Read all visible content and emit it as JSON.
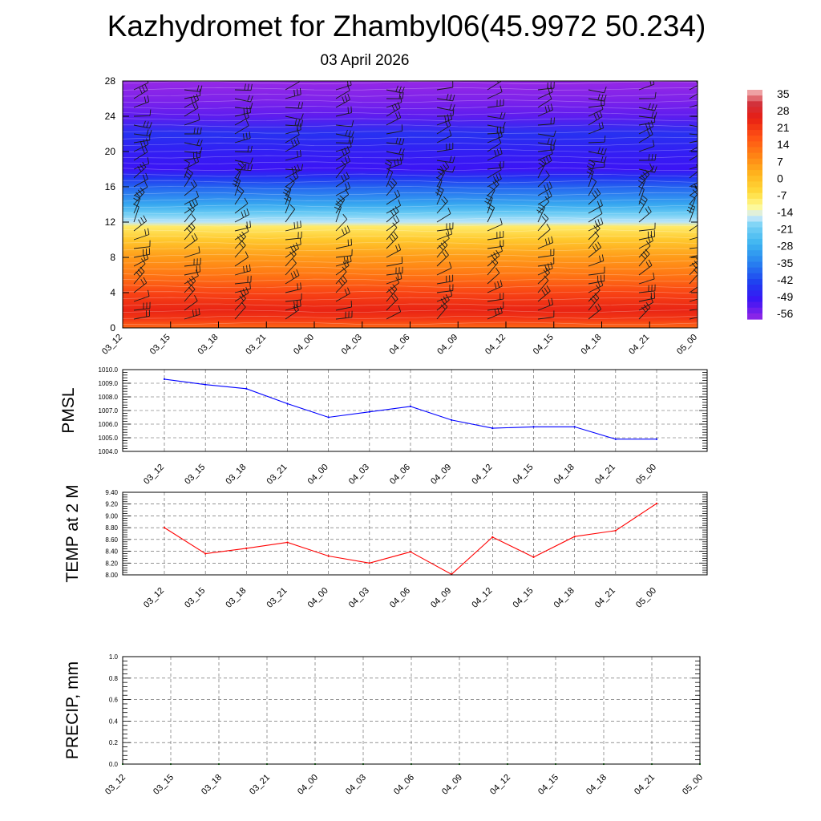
{
  "title": "Kazhydromet for Zhambyl06(45.9972 50.234)",
  "subtitle": "03 April 2026",
  "chart_data": [
    {
      "type": "heatmap",
      "title": "",
      "x_tick_labels": [
        "03_12",
        "03_15",
        "03_18",
        "03_21",
        "04_00",
        "04_03",
        "04_06",
        "04_09",
        "04_12",
        "04_15",
        "04_18",
        "04_21",
        "05_00"
      ],
      "y_ticks": [
        0,
        4,
        8,
        12,
        16,
        20,
        24,
        28
      ],
      "ylim": [
        0,
        28
      ],
      "colorbar": {
        "labels": [
          "35",
          "28",
          "21",
          "14",
          "7",
          "0",
          "-7",
          "-14",
          "-21",
          "-28",
          "-35",
          "-42",
          "-49",
          "-56"
        ],
        "range": [
          -60,
          38
        ]
      },
      "temperature_profile": [
        {
          "level": 0,
          "value": 14
        },
        {
          "level": 1,
          "value": 22
        },
        {
          "level": 2,
          "value": 25
        },
        {
          "level": 4,
          "value": 20
        },
        {
          "level": 6,
          "value": 12
        },
        {
          "level": 8,
          "value": 6
        },
        {
          "level": 10,
          "value": -2
        },
        {
          "level": 11.5,
          "value": -9
        },
        {
          "level": 12,
          "value": -17
        },
        {
          "level": 13,
          "value": -22
        },
        {
          "level": 14,
          "value": -30
        },
        {
          "level": 16,
          "value": -40
        },
        {
          "level": 17,
          "value": -46
        },
        {
          "level": 18,
          "value": -52
        },
        {
          "level": 20,
          "value": -50
        },
        {
          "level": 22,
          "value": -47
        },
        {
          "level": 24,
          "value": -55
        },
        {
          "level": 26,
          "value": -58
        },
        {
          "level": 28,
          "value": -60
        }
      ],
      "wind_barbs": "present",
      "grid": false
    },
    {
      "type": "line",
      "ylabel": "PMSL",
      "categories": [
        "03_12",
        "03_15",
        "03_18",
        "03_21",
        "04_00",
        "04_03",
        "04_06",
        "04_09",
        "04_12",
        "04_15",
        "04_18",
        "04_21",
        "05_00"
      ],
      "series": [
        {
          "color": "#0000ff",
          "values": [
            1009.3,
            1008.9,
            1008.6,
            1007.5,
            1006.5,
            1006.9,
            1007.3,
            1006.3,
            1005.7,
            1005.8,
            1005.8,
            1004.9,
            1004.9
          ]
        }
      ],
      "ylim": [
        1004.0,
        1010.0
      ],
      "y_tick_labels": [
        "1010.0",
        "1009.0",
        "1008.0",
        "1007.0",
        "1006.0",
        "1005.0",
        "1004.0"
      ],
      "grid": true
    },
    {
      "type": "line",
      "ylabel": "TEMP at 2 M",
      "categories": [
        "03_12",
        "03_15",
        "03_18",
        "03_21",
        "04_00",
        "04_03",
        "04_06",
        "04_09",
        "04_12",
        "04_15",
        "04_18",
        "04_21",
        "05_00"
      ],
      "series": [
        {
          "color": "#ff0000",
          "values": [
            8.8,
            8.36,
            8.45,
            8.55,
            8.32,
            8.2,
            8.39,
            8.01,
            8.64,
            8.3,
            8.65,
            8.75,
            9.21
          ]
        }
      ],
      "ylim": [
        8.0,
        9.4
      ],
      "y_tick_labels": [
        "9.40",
        "9.20",
        "9.00",
        "8.80",
        "8.60",
        "8.40",
        "8.20",
        "8.00"
      ],
      "grid": true
    },
    {
      "type": "line",
      "ylabel": "PRECIP, mm",
      "categories": [
        "03_12",
        "03_15",
        "03_18",
        "03_21",
        "04_00",
        "04_03",
        "04_06",
        "04_09",
        "04_12",
        "04_15",
        "04_18",
        "04_21",
        "05_00"
      ],
      "series": [
        {
          "color": "#008000",
          "values": [
            0,
            0,
            0,
            0,
            0,
            0,
            0,
            0,
            0,
            0,
            0,
            0,
            0
          ]
        }
      ],
      "ylim": [
        0.0,
        1.0
      ],
      "y_tick_labels": [
        "1.0",
        "0.8",
        "0.6",
        "0.4",
        "0.2",
        "0.0"
      ],
      "grid": true
    }
  ]
}
